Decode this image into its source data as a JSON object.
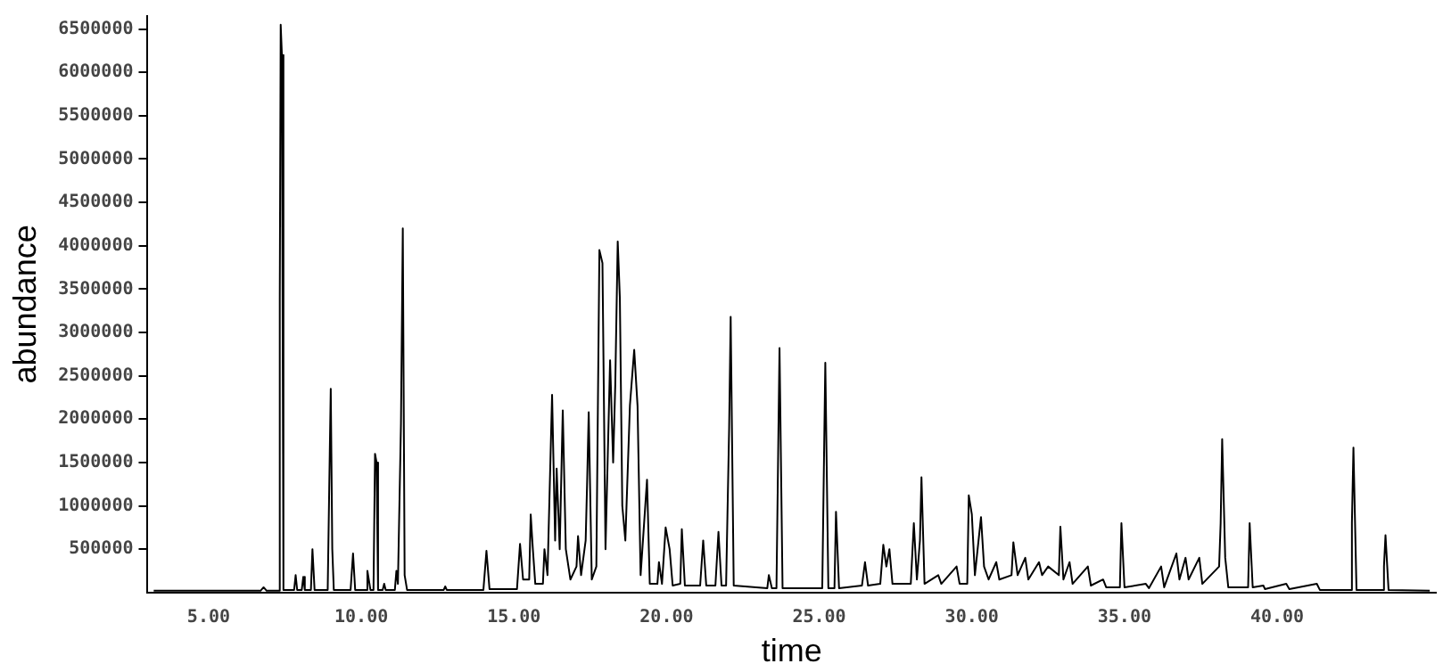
{
  "chart_data": {
    "type": "line",
    "xlabel": "time",
    "ylabel": "abundance",
    "color": "#000000",
    "marker": "none",
    "grid": false,
    "xlim": [
      3,
      45.2
    ],
    "ylim": [
      0,
      6650000
    ],
    "xticks": [
      {
        "value": 5,
        "label": "5.00"
      },
      {
        "value": 10,
        "label": "10.00"
      },
      {
        "value": 15,
        "label": "15.00"
      },
      {
        "value": 20,
        "label": "20.00"
      },
      {
        "value": 25,
        "label": "25.00"
      },
      {
        "value": 30,
        "label": "30.00"
      },
      {
        "value": 35,
        "label": "35.00"
      },
      {
        "value": 40,
        "label": "40.00"
      }
    ],
    "yticks": [
      500000,
      1000000,
      1500000,
      2000000,
      2500000,
      3000000,
      3500000,
      4000000,
      4500000,
      5000000,
      5500000,
      6000000,
      6500000
    ],
    "x": [
      3.2,
      6.7,
      6.8,
      6.9,
      7.3,
      7.33,
      7.36,
      7.4,
      7.45,
      7.8,
      7.85,
      7.9,
      8.05,
      8.1,
      8.15,
      8.35,
      8.4,
      8.47,
      8.9,
      8.95,
      9.0,
      9.05,
      9.1,
      9.65,
      9.73,
      9.8,
      10.15,
      10.2,
      10.3,
      10.4,
      10.45,
      10.5,
      10.55,
      10.7,
      10.75,
      10.8,
      11.1,
      11.15,
      11.2,
      11.3,
      11.36,
      11.42,
      11.5,
      12.7,
      12.75,
      12.8,
      14.0,
      14.1,
      14.2,
      15.1,
      15.2,
      15.3,
      15.5,
      15.55,
      15.62,
      15.7,
      15.95,
      16.0,
      16.1,
      16.25,
      16.35,
      16.4,
      16.5,
      16.6,
      16.7,
      16.85,
      17.05,
      17.1,
      17.2,
      17.35,
      17.4,
      17.45,
      17.55,
      17.7,
      17.8,
      17.9,
      18.0,
      18.15,
      18.25,
      18.32,
      18.4,
      18.47,
      18.55,
      18.65,
      18.8,
      18.94,
      19.05,
      19.15,
      19.36,
      19.45,
      19.7,
      19.75,
      19.85,
      19.97,
      20.1,
      20.2,
      20.45,
      20.5,
      20.6,
      21.1,
      21.2,
      21.3,
      21.6,
      21.7,
      21.8,
      21.95,
      22.05,
      22.1,
      22.2,
      23.3,
      23.35,
      23.45,
      23.6,
      23.65,
      23.7,
      23.8,
      25.1,
      25.2,
      25.3,
      25.5,
      25.55,
      25.65,
      26.4,
      26.5,
      26.6,
      27.0,
      27.1,
      27.2,
      27.3,
      27.4,
      28.0,
      28.1,
      28.2,
      28.3,
      28.35,
      28.45,
      28.9,
      29.0,
      29.5,
      29.6,
      29.85,
      29.9,
      30.0,
      30.1,
      30.3,
      30.4,
      30.55,
      30.8,
      30.9,
      31.3,
      31.36,
      31.5,
      31.75,
      31.85,
      32.2,
      32.3,
      32.5,
      32.85,
      32.9,
      33.0,
      33.2,
      33.3,
      33.8,
      33.9,
      34.3,
      34.4,
      34.85,
      34.9,
      35.0,
      35.7,
      35.8,
      36.2,
      36.3,
      36.7,
      36.8,
      37.0,
      37.1,
      37.45,
      37.55,
      38.1,
      38.15,
      38.2,
      38.3,
      38.4,
      39.05,
      39.1,
      39.2,
      39.55,
      39.6,
      40.3,
      40.4,
      41.3,
      41.4,
      42.4,
      42.45,
      42.5,
      42.6,
      43.45,
      43.5,
      43.55,
      43.65,
      45.0
    ],
    "values": [
      20000,
      20000,
      60000,
      20000,
      20000,
      3400000,
      6550000,
      6200000,
      30000,
      30000,
      200000,
      30000,
      30000,
      180000,
      30000,
      30000,
      500000,
      30000,
      30000,
      1200000,
      2350000,
      500000,
      30000,
      30000,
      450000,
      30000,
      30000,
      250000,
      30000,
      30000,
      1600000,
      1500000,
      30000,
      30000,
      100000,
      30000,
      30000,
      250000,
      100000,
      1950000,
      4200000,
      200000,
      30000,
      30000,
      70000,
      30000,
      30000,
      480000,
      40000,
      40000,
      560000,
      150000,
      150000,
      900000,
      500000,
      100000,
      100000,
      500000,
      200000,
      2280000,
      600000,
      1430000,
      500000,
      2100000,
      500000,
      150000,
      300000,
      650000,
      200000,
      600000,
      1300000,
      2080000,
      150000,
      300000,
      3950000,
      3800000,
      500000,
      2680000,
      1500000,
      2400000,
      4050000,
      3400000,
      1000000,
      600000,
      2160000,
      2800000,
      2150000,
      200000,
      1300000,
      100000,
      100000,
      350000,
      100000,
      750000,
      500000,
      80000,
      100000,
      730000,
      80000,
      80000,
      600000,
      80000,
      80000,
      700000,
      80000,
      80000,
      1900000,
      3180000,
      80000,
      50000,
      200000,
      50000,
      50000,
      1450000,
      2820000,
      50000,
      50000,
      2650000,
      50000,
      50000,
      930000,
      50000,
      80000,
      350000,
      80000,
      100000,
      550000,
      300000,
      500000,
      100000,
      100000,
      800000,
      150000,
      600000,
      1330000,
      100000,
      200000,
      100000,
      300000,
      100000,
      100000,
      1120000,
      900000,
      200000,
      870000,
      300000,
      150000,
      350000,
      150000,
      200000,
      580000,
      200000,
      400000,
      150000,
      350000,
      200000,
      300000,
      200000,
      760000,
      150000,
      350000,
      100000,
      300000,
      80000,
      150000,
      60000,
      60000,
      800000,
      60000,
      100000,
      50000,
      300000,
      60000,
      450000,
      150000,
      400000,
      150000,
      400000,
      100000,
      300000,
      800000,
      1770000,
      400000,
      60000,
      60000,
      800000,
      60000,
      80000,
      40000,
      100000,
      40000,
      100000,
      30000,
      30000,
      800000,
      1670000,
      30000,
      30000,
      300000,
      660000,
      30000,
      20000
    ]
  }
}
